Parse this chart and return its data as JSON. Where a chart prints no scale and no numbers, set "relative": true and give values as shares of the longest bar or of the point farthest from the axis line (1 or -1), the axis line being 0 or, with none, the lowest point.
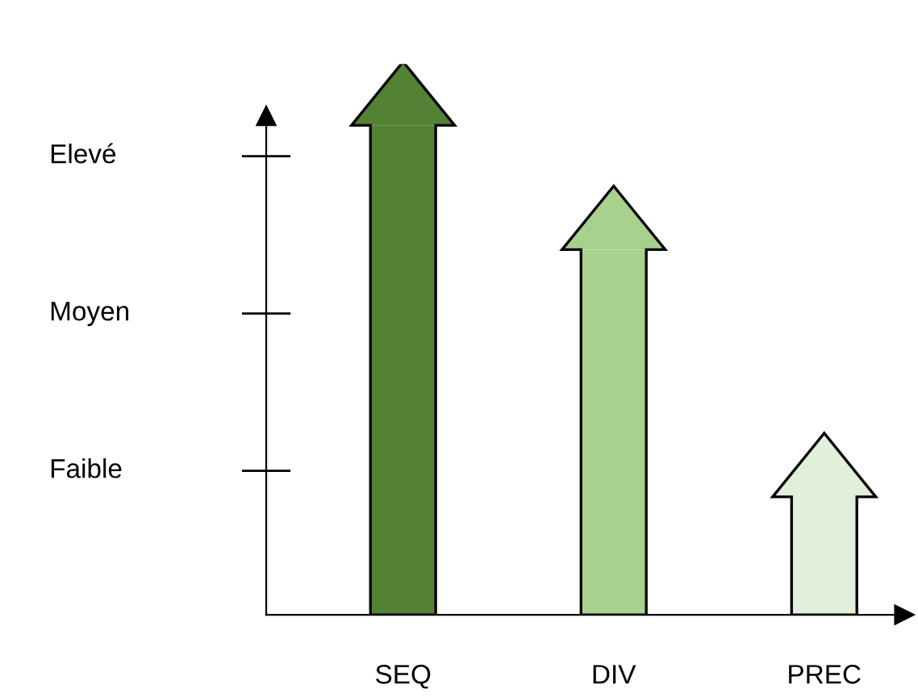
{
  "chart_data": {
    "type": "bar",
    "categories": [
      "SEQ",
      "DIV",
      "PREC"
    ],
    "values": [
      1,
      0.746,
      0.241
    ],
    "colors": [
      "#548235",
      "#a9d18e",
      "#e2efda"
    ],
    "relative": true,
    "annotations": [
      "Faible",
      "Moyen",
      "Elevé"
    ],
    "grid": false,
    "legend": false
  }
}
